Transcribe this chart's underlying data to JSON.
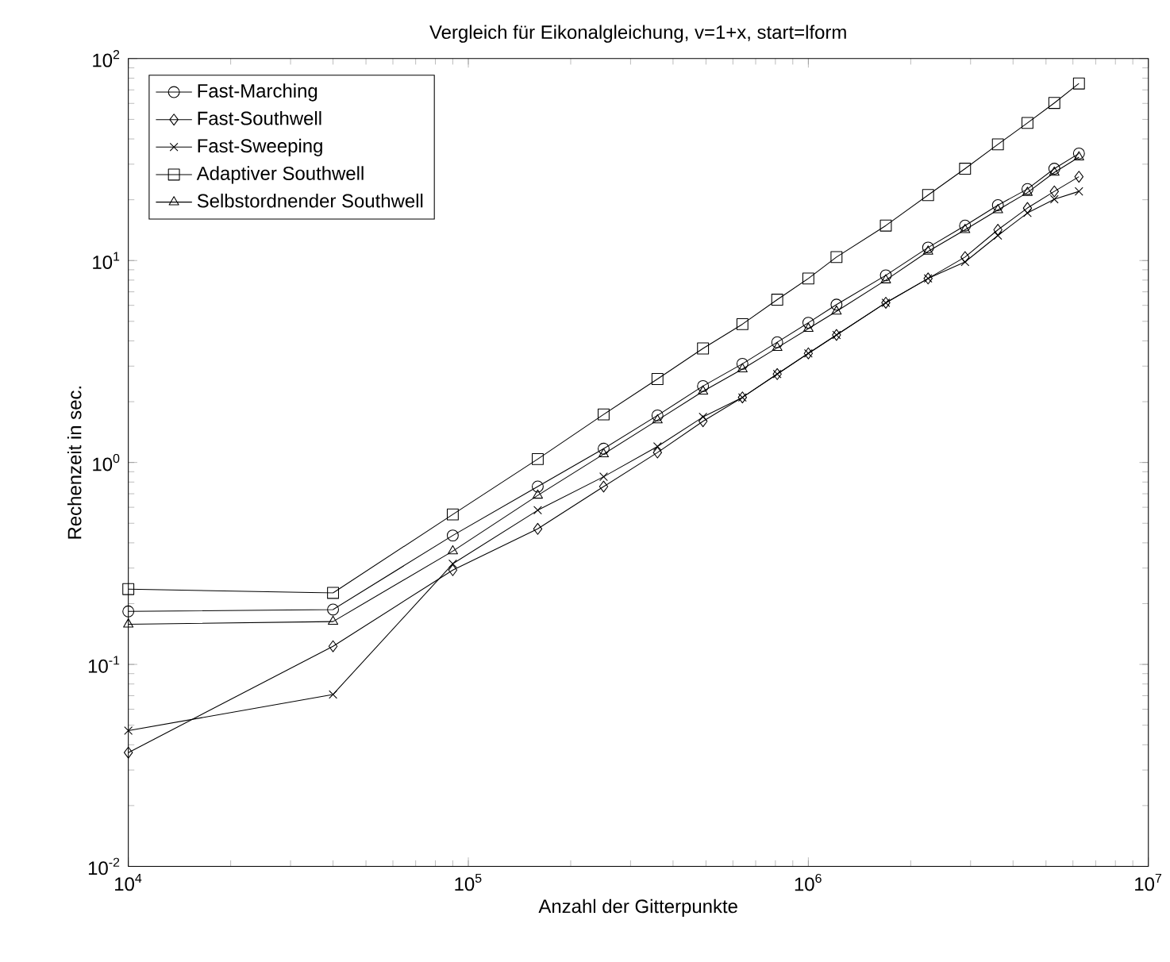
{
  "chart_data": {
    "type": "line",
    "title": "Vergleich für Eikonalgleichung, v=1+x, start=lform",
    "xlabel": "Anzahl der Gitterpunkte",
    "ylabel": "Rechenzeit in sec.",
    "x": [
      10000,
      40000,
      90000,
      160000,
      250000,
      360000,
      490000,
      640000,
      810000,
      1000000,
      1210000,
      1690000,
      2250000,
      2890000,
      3610000,
      4410000,
      5290000,
      6250000
    ],
    "series": [
      {
        "name": "Fast-Marching",
        "color": "#000000",
        "marker": "circle",
        "values": [
          0.183,
          0.187,
          0.435,
          0.76,
          1.17,
          1.71,
          2.39,
          3.08,
          3.94,
          4.92,
          6.05,
          8.45,
          11.6,
          14.9,
          18.8,
          22.6,
          28.5,
          33.9
        ]
      },
      {
        "name": "Fast-Southwell",
        "color": "#000000",
        "marker": "diamond",
        "values": [
          0.0366,
          0.123,
          0.293,
          0.469,
          0.76,
          1.12,
          1.6,
          2.1,
          2.74,
          3.47,
          4.28,
          6.18,
          8.15,
          10.4,
          14.2,
          18.2,
          22,
          26
        ]
      },
      {
        "name": "Fast-Sweeping",
        "color": "#000000",
        "marker": "cross",
        "values": [
          0.047,
          0.071,
          0.315,
          0.58,
          0.85,
          1.2,
          1.68,
          2.1,
          2.74,
          3.47,
          4.28,
          6.18,
          8.15,
          9.84,
          13.3,
          17.2,
          20.1,
          22
        ]
      },
      {
        "name": "Adaptiver Southwell",
        "color": "#000000",
        "marker": "square",
        "values": [
          0.236,
          0.226,
          0.553,
          1.04,
          1.73,
          2.59,
          3.67,
          4.84,
          6.4,
          8.15,
          10.4,
          14.9,
          21.1,
          28.5,
          37.6,
          48,
          60.3,
          75.3
        ]
      },
      {
        "name": "Selbstordnender Southwell",
        "color": "#000000",
        "marker": "triangle",
        "values": [
          0.158,
          0.163,
          0.364,
          0.687,
          1.1,
          1.62,
          2.25,
          2.9,
          3.7,
          4.6,
          5.6,
          8.0,
          11.1,
          14.2,
          17.8,
          21.7,
          27.3,
          32.5
        ]
      }
    ],
    "log": "xy",
    "xlim": [
      10000,
      10000000
    ],
    "ylim": [
      0.01,
      100
    ],
    "xticks": [
      {
        "value": 10000,
        "label": "10$^{4}$"
      },
      {
        "value": 100000,
        "label": "10$^{5}$"
      },
      {
        "value": 1000000,
        "label": "10$^{6}$"
      },
      {
        "value": 10000000,
        "label": "10$^{7}$"
      }
    ],
    "yticks": [
      {
        "value": 0.01,
        "label": "10$^{-2}$"
      },
      {
        "value": 0.1,
        "label": "10$^{-1}$"
      },
      {
        "value": 1,
        "label": "10$^{0}$"
      },
      {
        "value": 10,
        "label": "10$^{1}$"
      },
      {
        "value": 100,
        "label": "10$^{2}$"
      }
    ],
    "legend": "top left",
    "line_style": "solid"
  }
}
